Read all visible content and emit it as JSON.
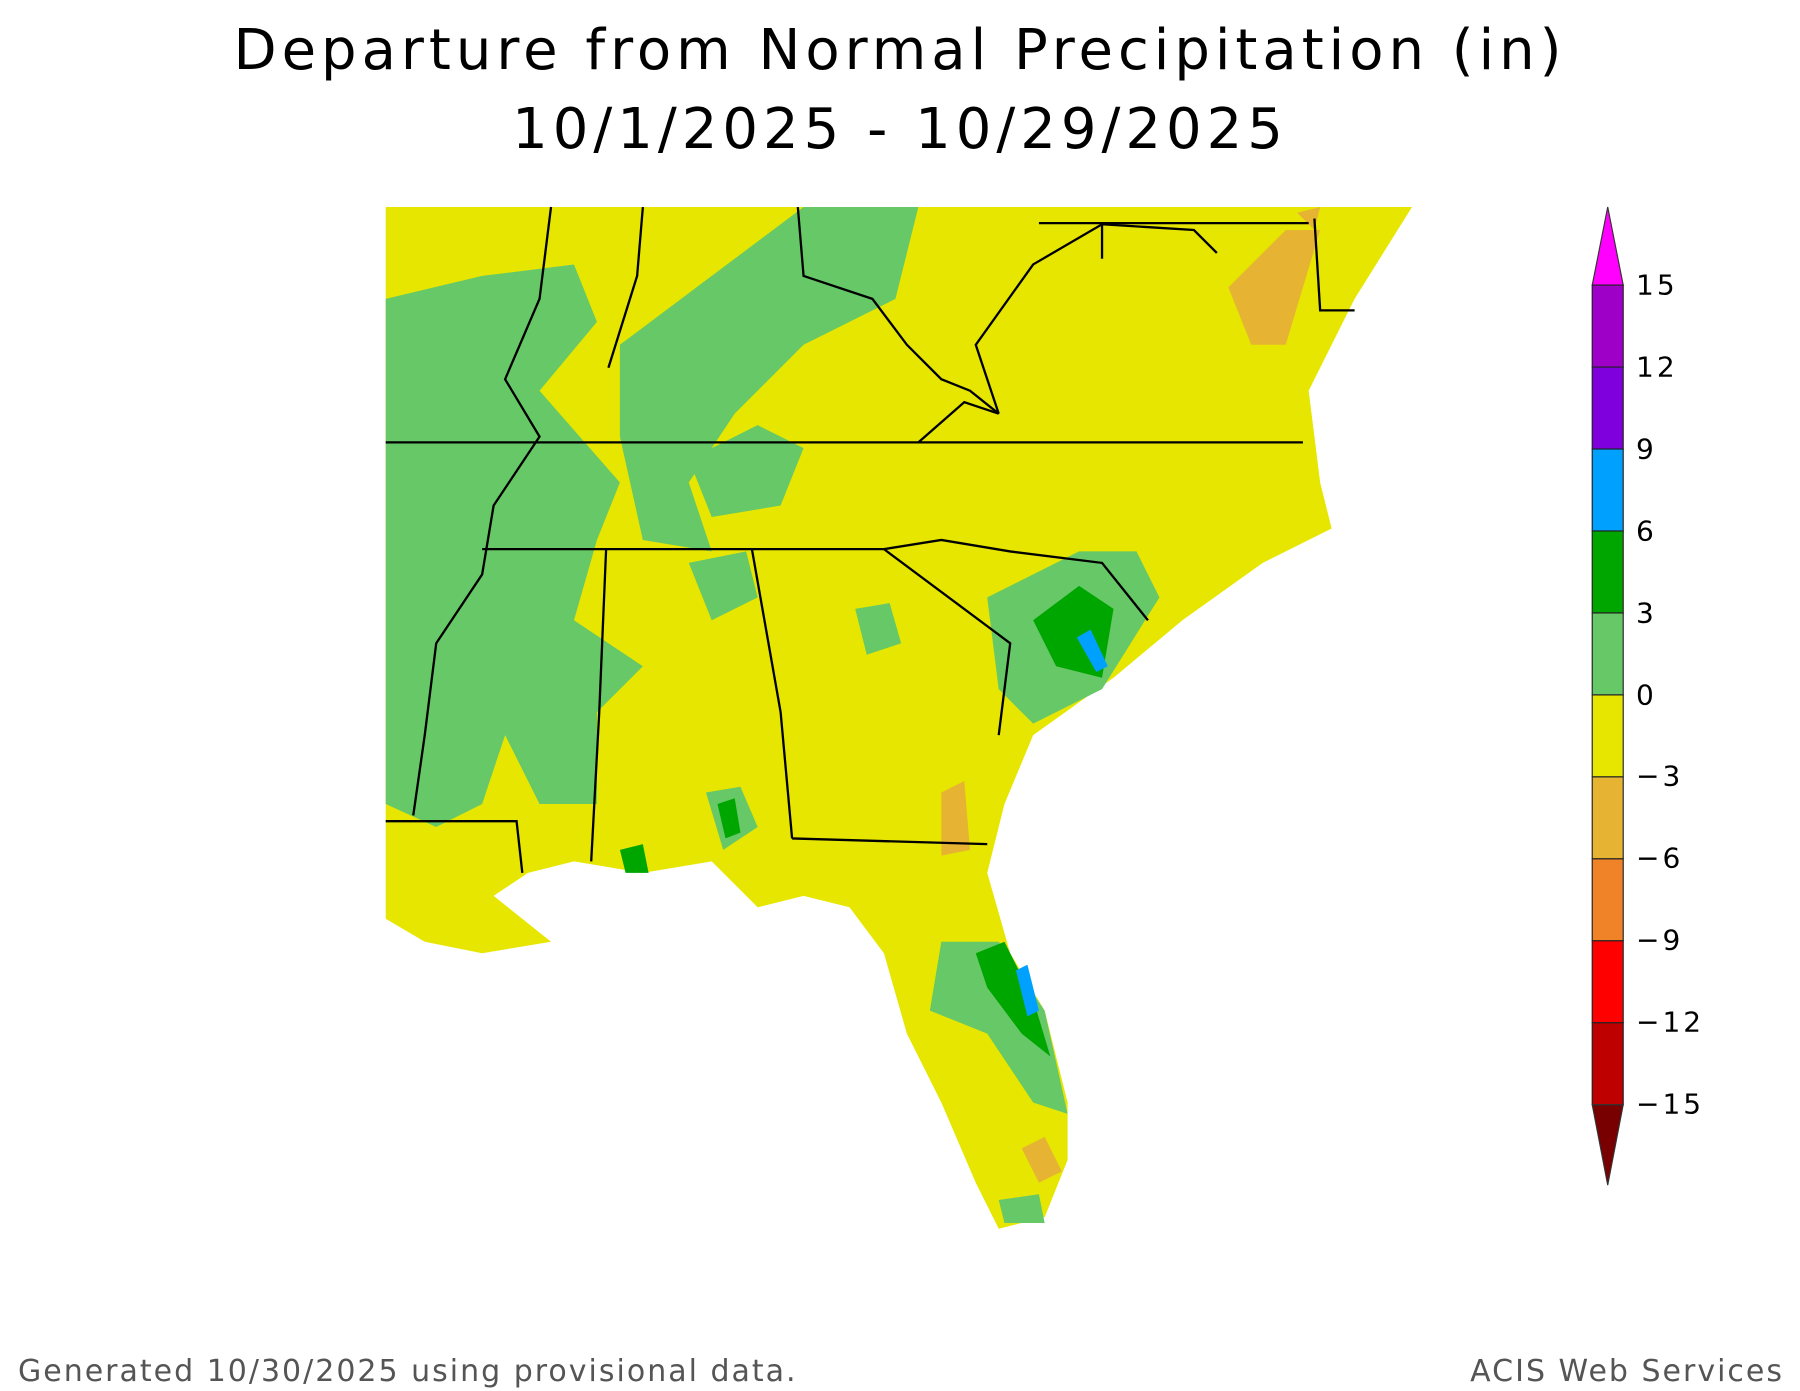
{
  "chart_data": {
    "type": "heatmap",
    "title": "Departure from Normal Precipitation (in)",
    "subtitle": "10/1/2025 - 10/29/2025",
    "region": "Southeast United States",
    "colorbar": {
      "ticks": [
        "15",
        "12",
        "9",
        "6",
        "3",
        "0",
        "−3",
        "−6",
        "−9",
        "−12",
        "−15"
      ],
      "bins": [
        {
          "range": ">15",
          "color": "#ff00ff"
        },
        {
          "range": "12 to 15",
          "color": "#9e00c8"
        },
        {
          "range": "9 to 12",
          "color": "#7f00dc"
        },
        {
          "range": "6 to 9",
          "color": "#00a0ff"
        },
        {
          "range": "3 to 6",
          "color": "#00a600"
        },
        {
          "range": "0 to 3",
          "color": "#66c866"
        },
        {
          "range": "-3 to 0",
          "color": "#e6e600"
        },
        {
          "range": "-6 to -3",
          "color": "#e6b432"
        },
        {
          "range": "-9 to -6",
          "color": "#f08228"
        },
        {
          "range": "-12 to -9",
          "color": "#ff0000"
        },
        {
          "range": "-15 to -12",
          "color": "#be0000"
        },
        {
          "range": "<-15",
          "color": "#780000"
        }
      ],
      "placement": "right"
    }
  },
  "footer": {
    "left": "Generated 10/30/2025 using provisional data.",
    "right": "ACIS Web Services"
  }
}
